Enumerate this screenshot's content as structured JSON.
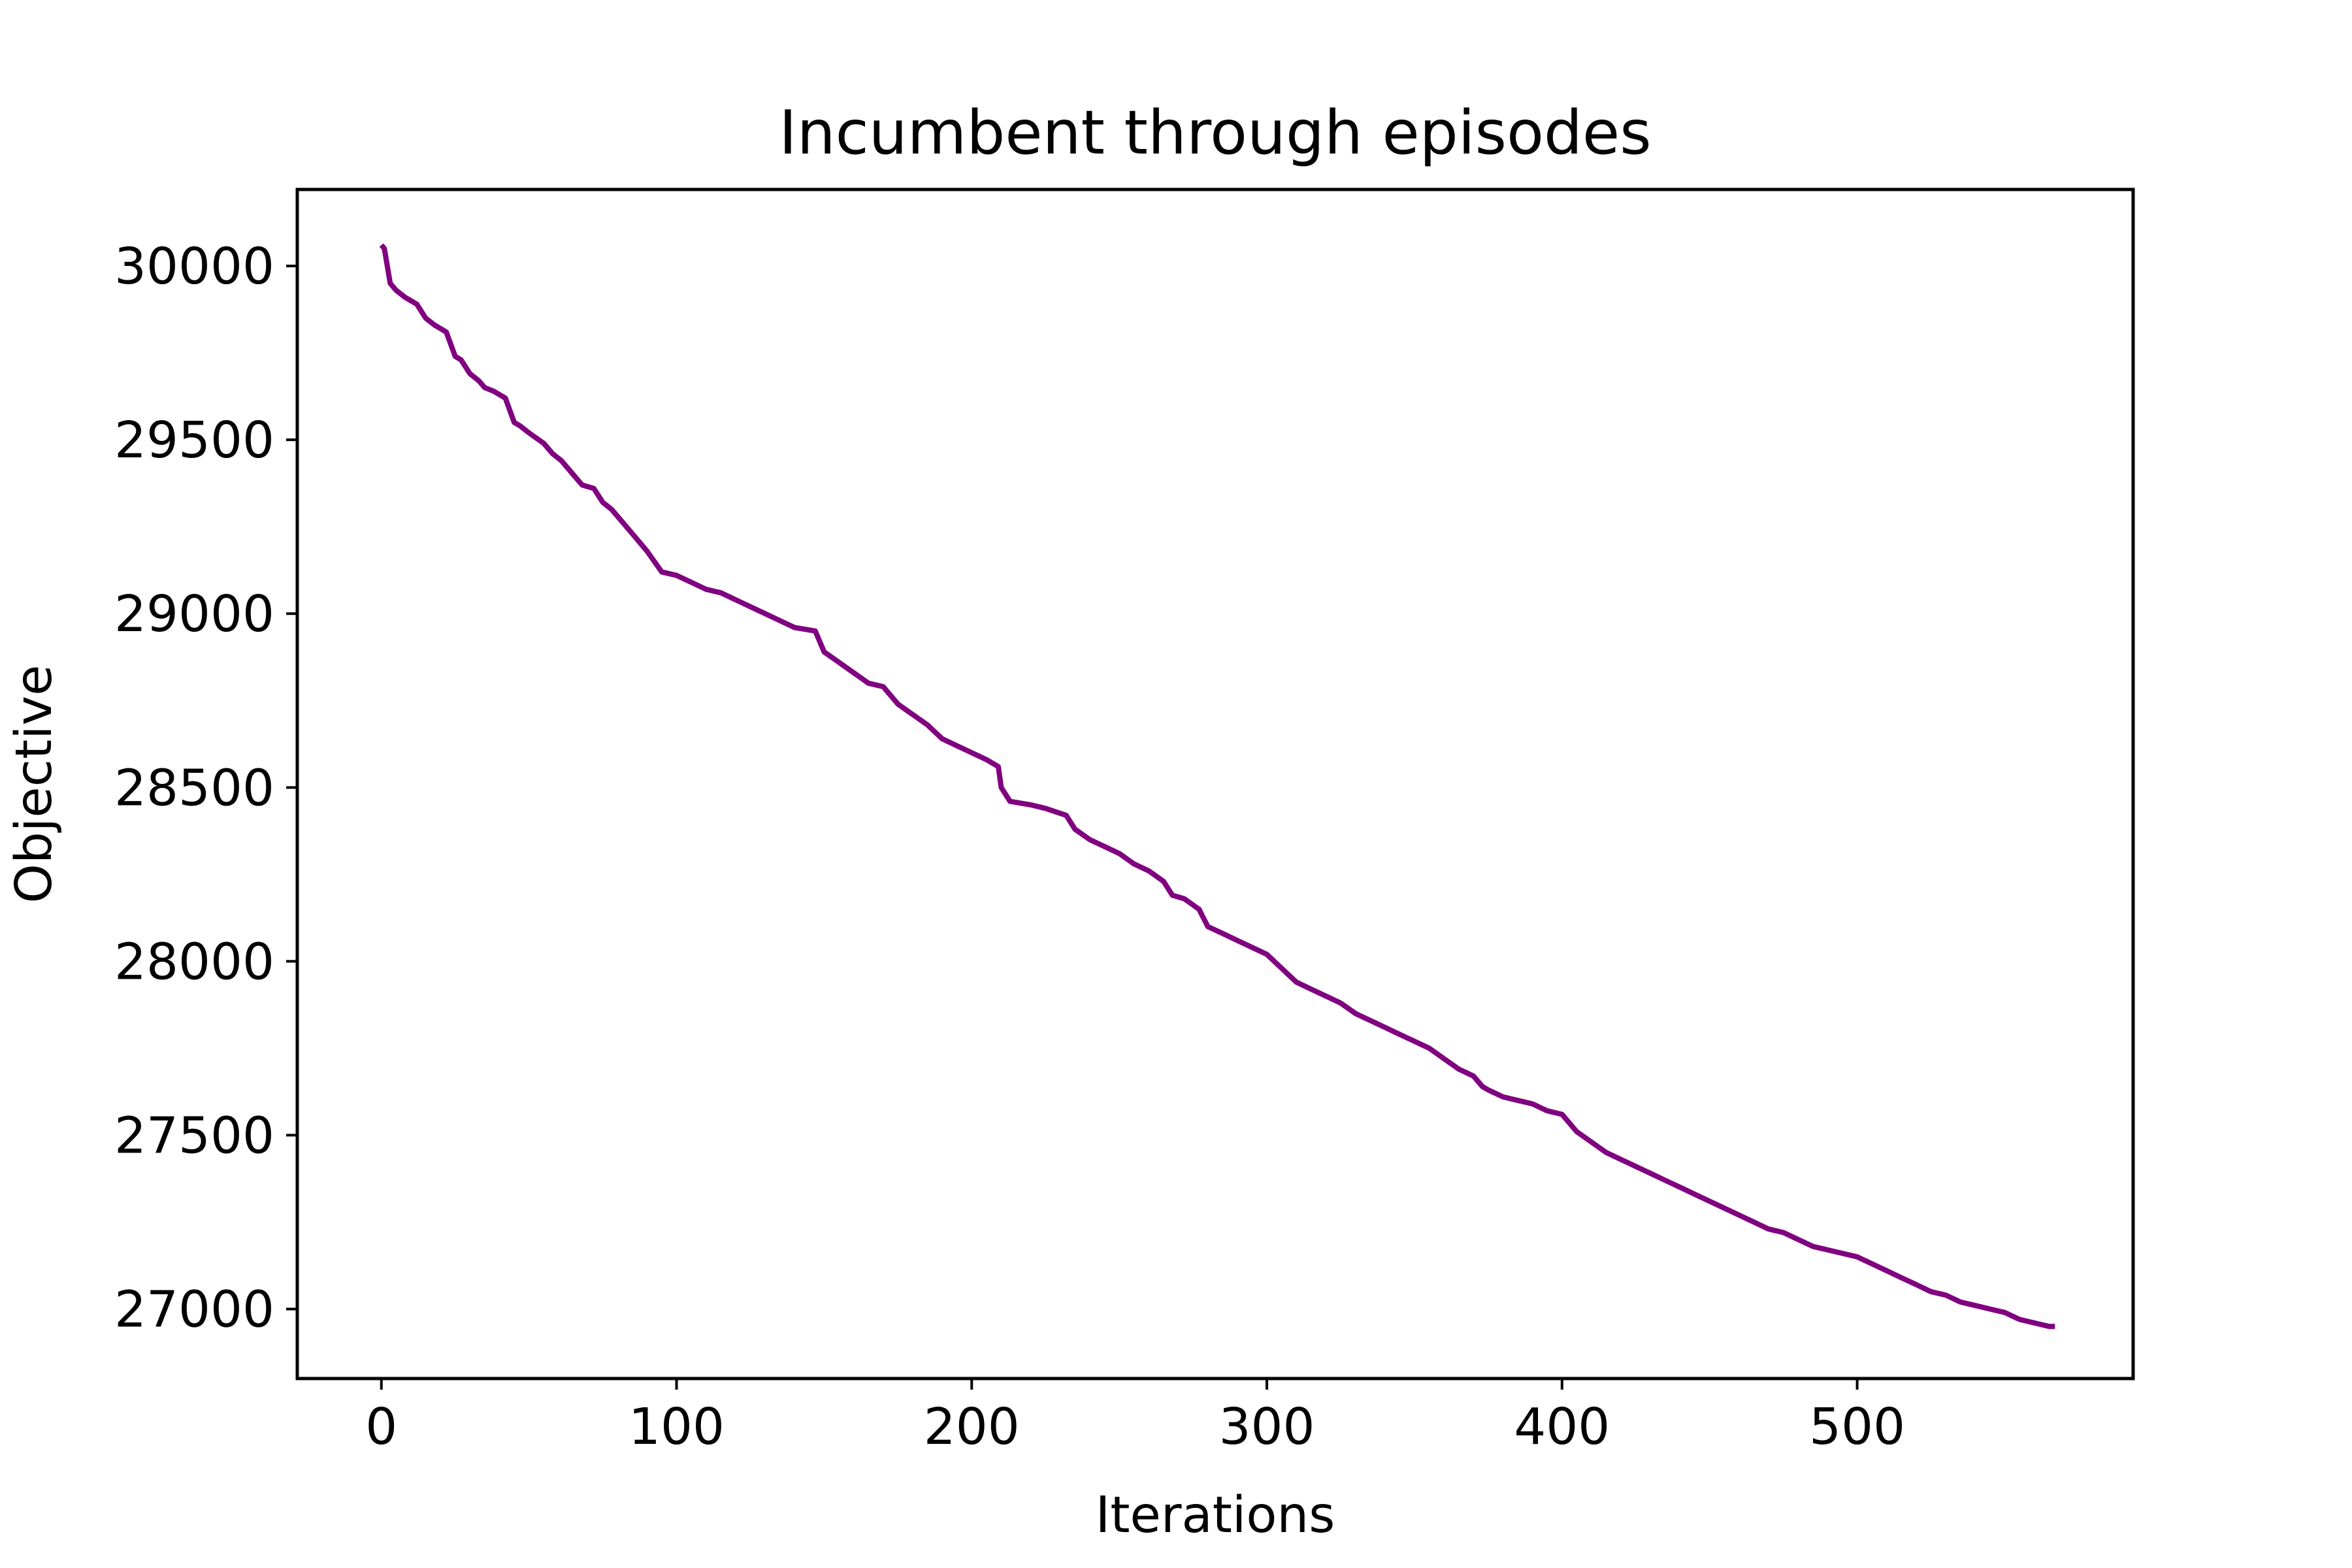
{
  "chart_data": {
    "type": "line",
    "title": "Incumbent through episodes",
    "xlabel": "Iterations",
    "ylabel": "Objective",
    "xlim": [
      -28.5,
      593.5
    ],
    "ylim": [
      26800,
      30220
    ],
    "xticks": [
      0,
      100,
      200,
      300,
      400,
      500
    ],
    "yticks": [
      27000,
      27500,
      28000,
      28500,
      29000,
      29500,
      30000
    ],
    "xtick_labels": [
      "0",
      "100",
      "200",
      "300",
      "400",
      "500"
    ],
    "ytick_labels": [
      "27000",
      "27500",
      "28000",
      "28500",
      "29000",
      "29500",
      "30000"
    ],
    "grid": false,
    "legend": "none",
    "line_color": "#800080",
    "series": [
      {
        "x": [
          0,
          1,
          3,
          5,
          8,
          12,
          15,
          18,
          22,
          25,
          27,
          30,
          33,
          35,
          38,
          42,
          45,
          47,
          50,
          55,
          58,
          61,
          65,
          68,
          72,
          75,
          78,
          82,
          85,
          90,
          95,
          100,
          105,
          110,
          115,
          120,
          125,
          130,
          135,
          140,
          147,
          150,
          155,
          160,
          165,
          170,
          175,
          180,
          185,
          190,
          195,
          200,
          205,
          209,
          210,
          213,
          220,
          225,
          232,
          235,
          240,
          245,
          250,
          255,
          260,
          265,
          268,
          272,
          277,
          280,
          285,
          290,
          295,
          300,
          305,
          310,
          315,
          320,
          325,
          330,
          335,
          340,
          345,
          350,
          355,
          360,
          365,
          370,
          373,
          375,
          380,
          385,
          390,
          395,
          400,
          405,
          410,
          415,
          420,
          425,
          430,
          435,
          440,
          445,
          450,
          455,
          460,
          465,
          470,
          475,
          480,
          485,
          490,
          495,
          500,
          505,
          510,
          515,
          520,
          525,
          530,
          535,
          540,
          545,
          550,
          555,
          560,
          565,
          567
        ],
        "y": [
          30060,
          30050,
          29950,
          29930,
          29910,
          29890,
          29850,
          29830,
          29810,
          29740,
          29730,
          29690,
          29670,
          29650,
          29640,
          29620,
          29550,
          29540,
          29520,
          29490,
          29460,
          29440,
          29400,
          29370,
          29360,
          29320,
          29300,
          29260,
          29230,
          29180,
          29120,
          29110,
          29090,
          29070,
          29060,
          29040,
          29020,
          29000,
          28980,
          28960,
          28950,
          28890,
          28860,
          28830,
          28800,
          28790,
          28740,
          28710,
          28680,
          28640,
          28620,
          28600,
          28580,
          28560,
          28500,
          28460,
          28450,
          28440,
          28420,
          28380,
          28350,
          28330,
          28310,
          28280,
          28260,
          28230,
          28190,
          28180,
          28150,
          28100,
          28080,
          28060,
          28040,
          28020,
          27980,
          27940,
          27920,
          27900,
          27880,
          27850,
          27830,
          27810,
          27790,
          27770,
          27750,
          27720,
          27690,
          27670,
          27640,
          27630,
          27610,
          27600,
          27590,
          27570,
          27560,
          27510,
          27480,
          27450,
          27430,
          27410,
          27390,
          27370,
          27350,
          27330,
          27310,
          27290,
          27270,
          27250,
          27230,
          27220,
          27200,
          27180,
          27170,
          27160,
          27150,
          27130,
          27110,
          27090,
          27070,
          27050,
          27040,
          27020,
          27010,
          27000,
          26990,
          26970,
          26960,
          26950,
          26950
        ]
      }
    ]
  }
}
